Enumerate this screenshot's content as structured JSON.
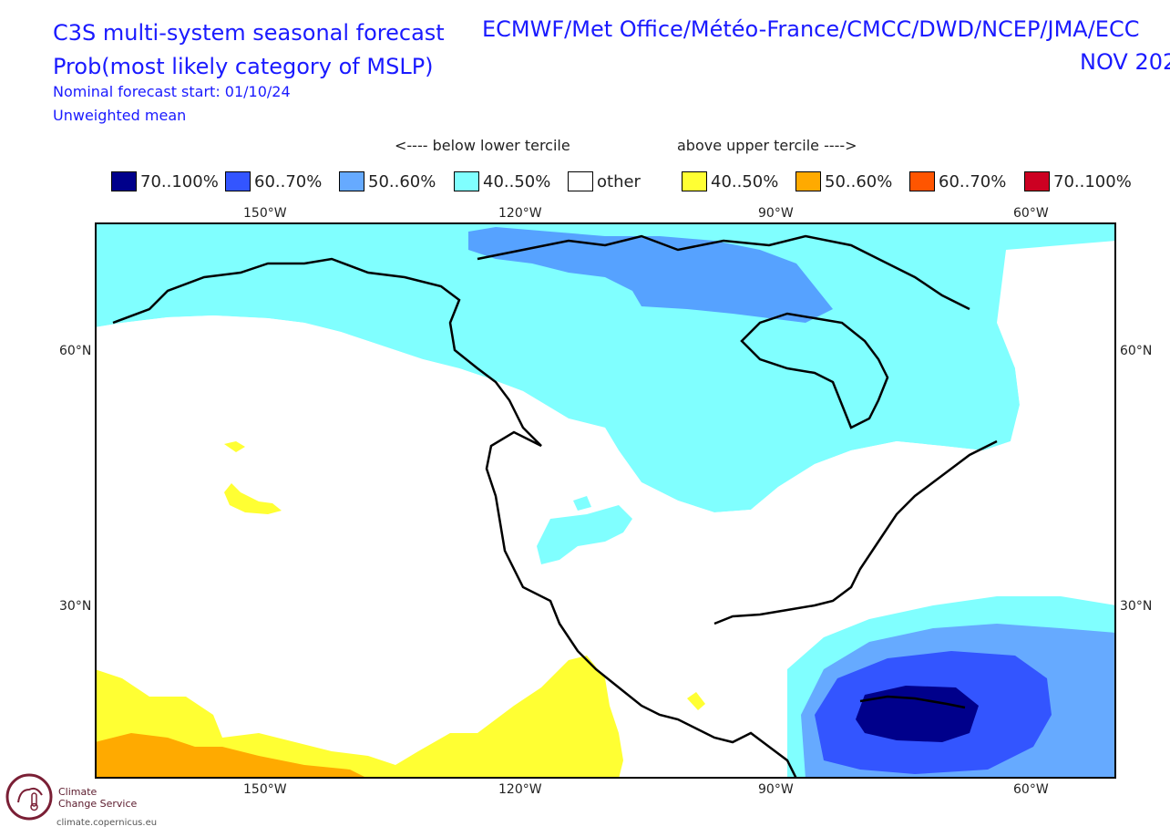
{
  "header": {
    "title_line1": "C3S multi-system seasonal forecast",
    "title_line2": "Prob(most likely category of MSLP)",
    "forecast_start": "Nominal forecast start: 01/10/24",
    "weighting": "Unweighted mean",
    "systems": "ECMWF/Met Office/Météo-France/CMCC/DWD/NCEP/JMA/ECC",
    "valid_period": "NOV 202"
  },
  "legend": {
    "below_header": "<---- below lower tercile",
    "above_header": "above upper tercile ---->",
    "items": [
      {
        "label": "70..100%",
        "color": "#00008b"
      },
      {
        "label": "60..70%",
        "color": "#3355ff"
      },
      {
        "label": "50..60%",
        "color": "#66aaff"
      },
      {
        "label": "40..50%",
        "color": "#80ffff"
      },
      {
        "label": "other",
        "color": "#ffffff"
      },
      {
        "label": "40..50%",
        "color": "#ffff33"
      },
      {
        "label": "50..60%",
        "color": "#ffaa00"
      },
      {
        "label": "60..70%",
        "color": "#ff5500"
      },
      {
        "label": "70..100%",
        "color": "#cc0022"
      }
    ]
  },
  "axes": {
    "lon_labels": [
      "150°W",
      "120°W",
      "90°W",
      "60°W"
    ],
    "lat_labels": [
      "60°N",
      "30°N"
    ]
  },
  "branding": {
    "logo_line1": "Climate",
    "logo_line2": "Change Service",
    "url": "climate.copernicus.eu"
  }
}
